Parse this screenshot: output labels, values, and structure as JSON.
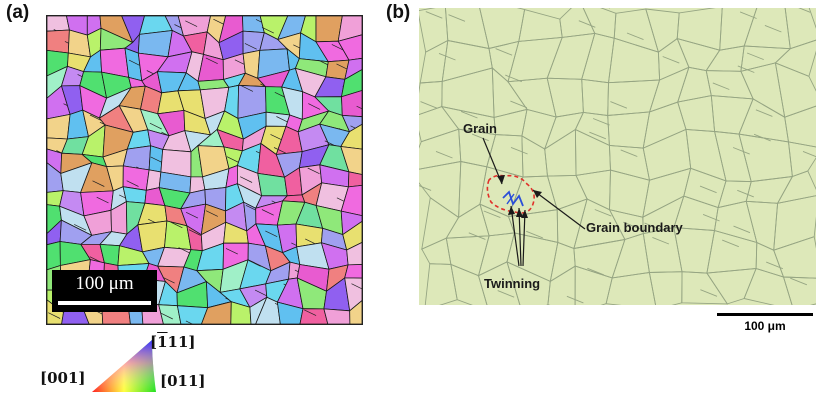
{
  "panel_a": {
    "label": "(a)",
    "scale_bar": "100 μm",
    "ipf_legend": {
      "top": {
        "pre": "[",
        "over": "1",
        "post": "11]"
      },
      "left": "[001]",
      "right": "[011]"
    }
  },
  "panel_b": {
    "label": "(b)",
    "annotations": {
      "grain": "Grain",
      "grain_boundary": "Grain boundary",
      "twinning": "Twinning"
    },
    "scale_bar": "100 μm"
  },
  "colors": {
    "optical_background": "#dde8b9",
    "grain_marker": "#e0302a",
    "twin_marker": "#2b4fd8"
  }
}
